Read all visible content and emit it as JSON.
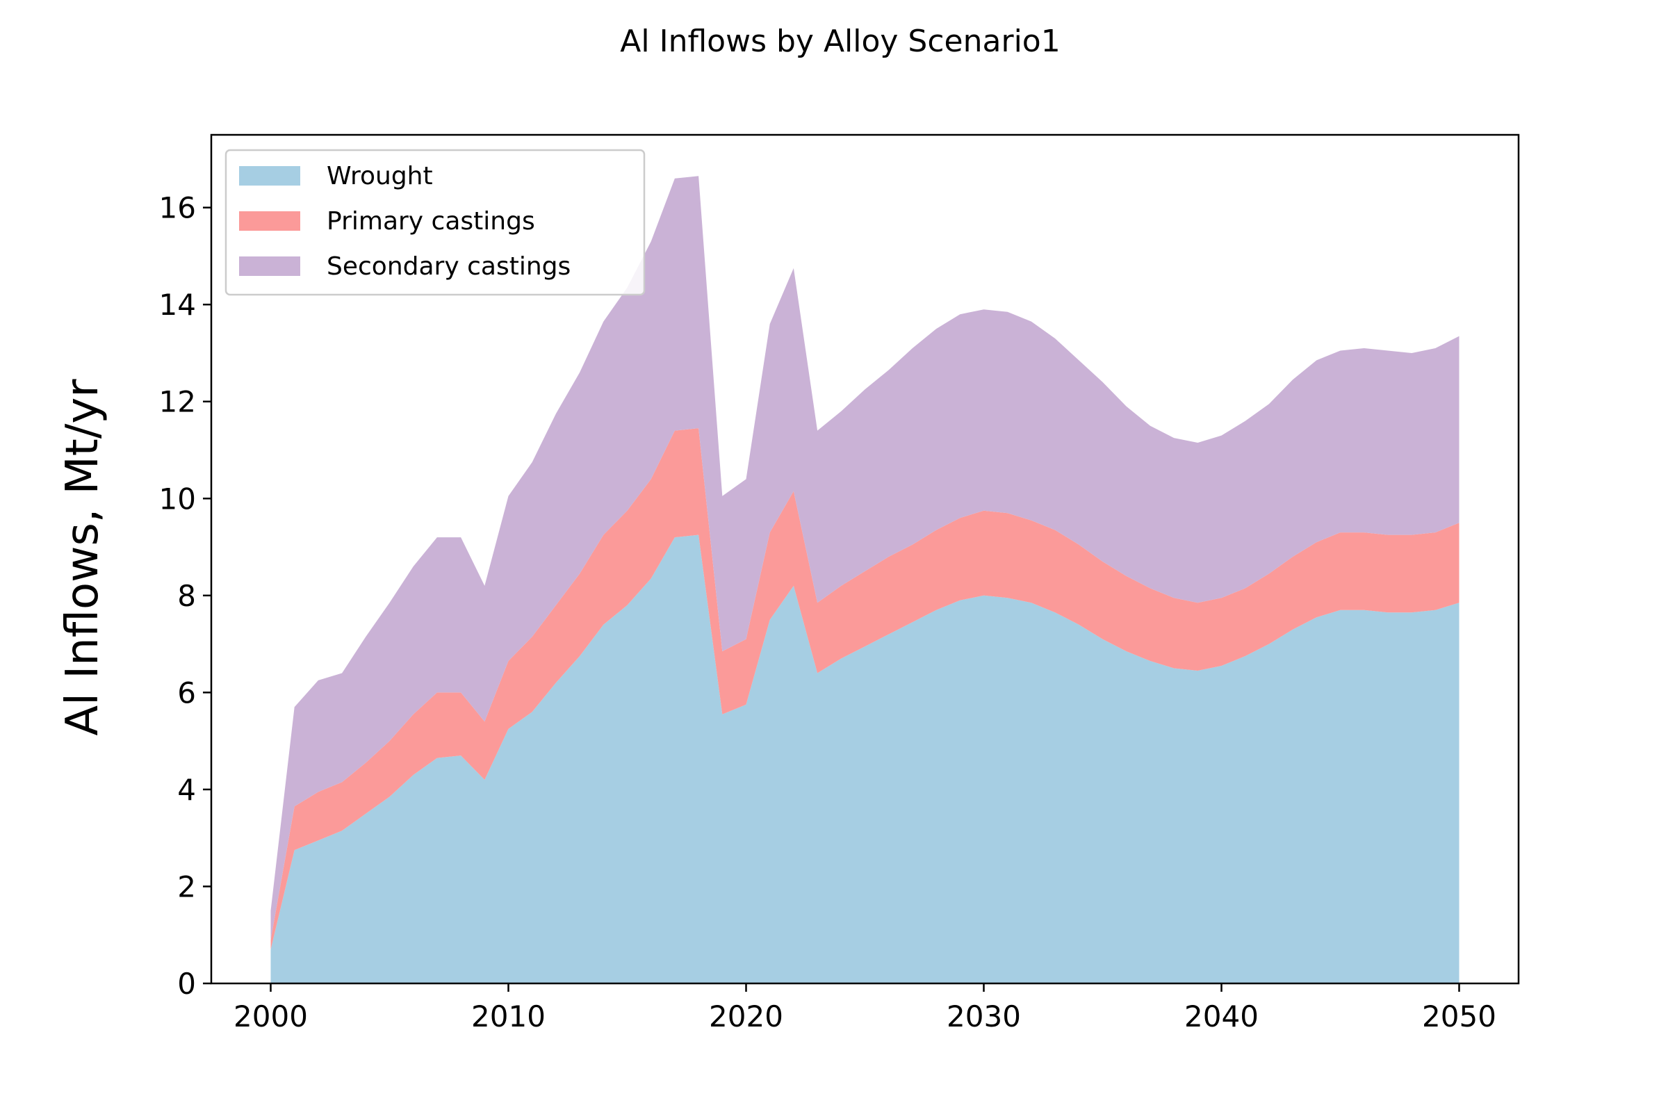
{
  "chart_data": {
    "type": "area",
    "title": "Al Inflows by Alloy Scenario1",
    "xlabel": "",
    "ylabel": "Al Inflows, Mt/yr",
    "xlim": [
      1997.5,
      2052.5
    ],
    "ylim": [
      0,
      17.5
    ],
    "xticks": [
      2000,
      2010,
      2020,
      2030,
      2040,
      2050
    ],
    "yticks": [
      0,
      2,
      4,
      6,
      8,
      10,
      12,
      14,
      16
    ],
    "stacked": true,
    "grid": false,
    "legend_position": "top-left",
    "x": [
      2000,
      2001,
      2002,
      2003,
      2004,
      2005,
      2006,
      2007,
      2008,
      2009,
      2010,
      2011,
      2012,
      2013,
      2014,
      2015,
      2016,
      2017,
      2018,
      2019,
      2020,
      2021,
      2022,
      2023,
      2024,
      2025,
      2026,
      2027,
      2028,
      2029,
      2030,
      2031,
      2032,
      2033,
      2034,
      2035,
      2036,
      2037,
      2038,
      2039,
      2040,
      2041,
      2042,
      2043,
      2044,
      2045,
      2046,
      2047,
      2048,
      2049,
      2050
    ],
    "series": [
      {
        "name": "Wrought",
        "color": "#a6cee3",
        "values": [
          0.7,
          2.75,
          2.95,
          3.15,
          3.5,
          3.85,
          4.3,
          4.65,
          4.7,
          4.2,
          5.25,
          5.6,
          6.2,
          6.75,
          7.4,
          7.8,
          8.35,
          9.2,
          9.25,
          5.55,
          5.75,
          7.5,
          8.2,
          6.4,
          6.7,
          6.95,
          7.2,
          7.45,
          7.7,
          7.9,
          8.0,
          7.95,
          7.85,
          7.65,
          7.4,
          7.1,
          6.85,
          6.65,
          6.5,
          6.45,
          6.55,
          6.75,
          7.0,
          7.3,
          7.55,
          7.7,
          7.7,
          7.65,
          7.65,
          7.7,
          7.85
        ]
      },
      {
        "name": "Primary castings",
        "color": "#fb9a99",
        "values": [
          0.2,
          0.9,
          1.0,
          1.0,
          1.05,
          1.15,
          1.25,
          1.35,
          1.3,
          1.2,
          1.4,
          1.55,
          1.6,
          1.7,
          1.85,
          1.95,
          2.05,
          2.2,
          2.2,
          1.3,
          1.35,
          1.8,
          1.95,
          1.45,
          1.5,
          1.55,
          1.6,
          1.6,
          1.65,
          1.7,
          1.75,
          1.75,
          1.7,
          1.7,
          1.65,
          1.6,
          1.55,
          1.5,
          1.45,
          1.4,
          1.4,
          1.4,
          1.45,
          1.5,
          1.55,
          1.6,
          1.6,
          1.6,
          1.6,
          1.6,
          1.65
        ]
      },
      {
        "name": "Secondary castings",
        "color": "#cab2d6",
        "values": [
          0.6,
          2.05,
          2.3,
          2.25,
          2.6,
          2.85,
          3.05,
          3.2,
          3.2,
          2.8,
          3.4,
          3.6,
          3.95,
          4.15,
          4.4,
          4.6,
          4.9,
          5.2,
          5.2,
          3.2,
          3.3,
          4.3,
          4.6,
          3.55,
          3.6,
          3.75,
          3.85,
          4.05,
          4.15,
          4.2,
          4.15,
          4.15,
          4.1,
          3.95,
          3.8,
          3.7,
          3.5,
          3.35,
          3.3,
          3.3,
          3.35,
          3.45,
          3.5,
          3.65,
          3.75,
          3.75,
          3.8,
          3.8,
          3.75,
          3.8,
          3.85
        ]
      }
    ]
  }
}
